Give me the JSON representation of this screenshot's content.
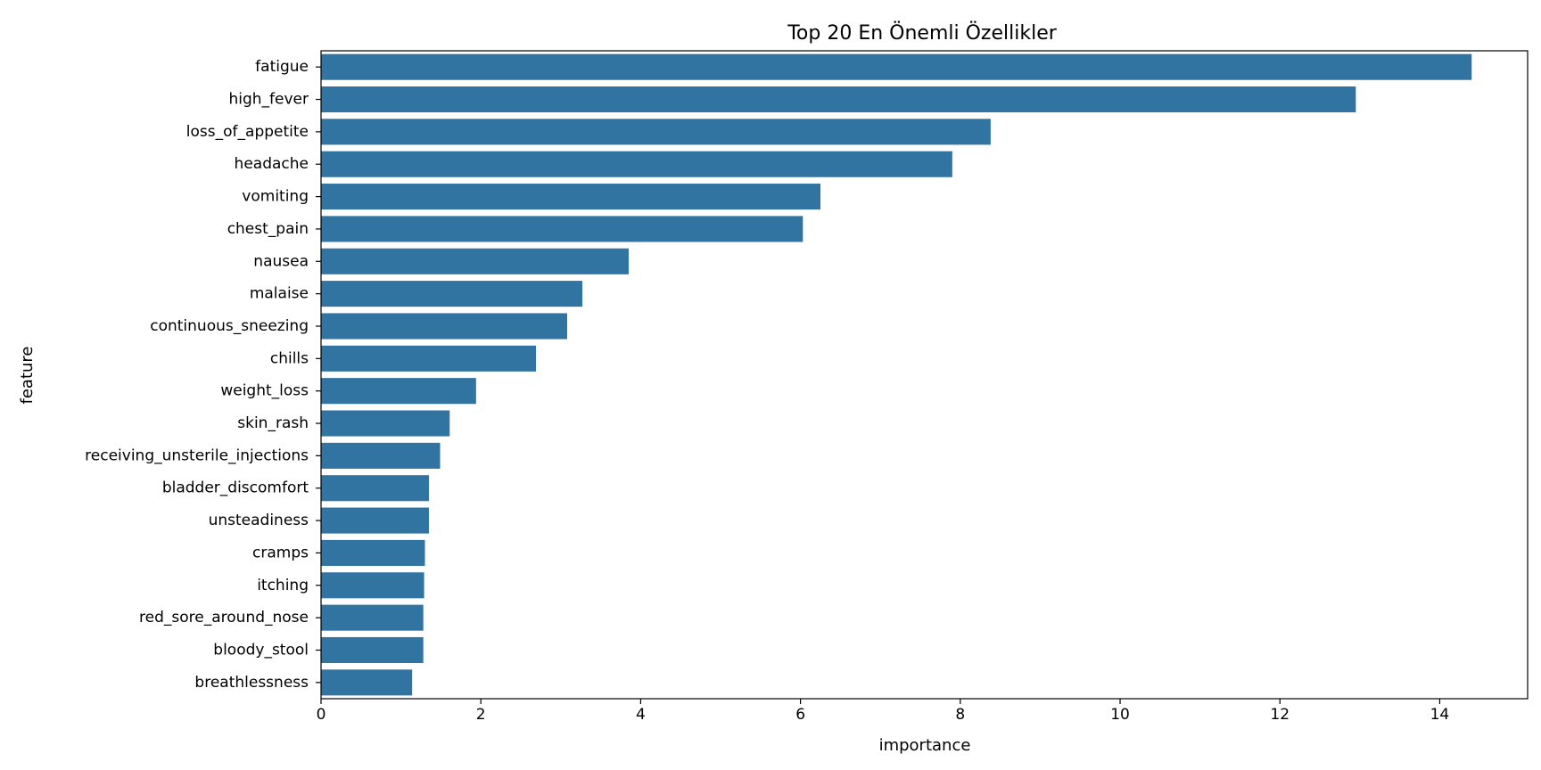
{
  "chart_data": {
    "type": "bar",
    "orientation": "horizontal",
    "title": "Top 20 En Önemli Özellikler",
    "xlabel": "importance",
    "ylabel": "feature",
    "xlim": [
      0,
      15.1
    ],
    "xticks": [
      0,
      2,
      4,
      6,
      8,
      10,
      12,
      14
    ],
    "grid": false,
    "bar_color": "#3274a1",
    "categories": [
      "fatigue",
      "high_fever",
      "loss_of_appetite",
      "headache",
      "vomiting",
      "chest_pain",
      "nausea",
      "malaise",
      "continuous_sneezing",
      "chills",
      "weight_loss",
      "skin_rash",
      "receiving_unsterile_injections",
      "bladder_discomfort",
      "unsteadiness",
      "cramps",
      "itching",
      "red_sore_around_nose",
      "bloody_stool",
      "breathlessness"
    ],
    "values": [
      14.4,
      12.95,
      8.38,
      7.9,
      6.25,
      6.03,
      3.85,
      3.27,
      3.08,
      2.69,
      1.94,
      1.61,
      1.49,
      1.35,
      1.35,
      1.3,
      1.29,
      1.28,
      1.28,
      1.14
    ]
  }
}
